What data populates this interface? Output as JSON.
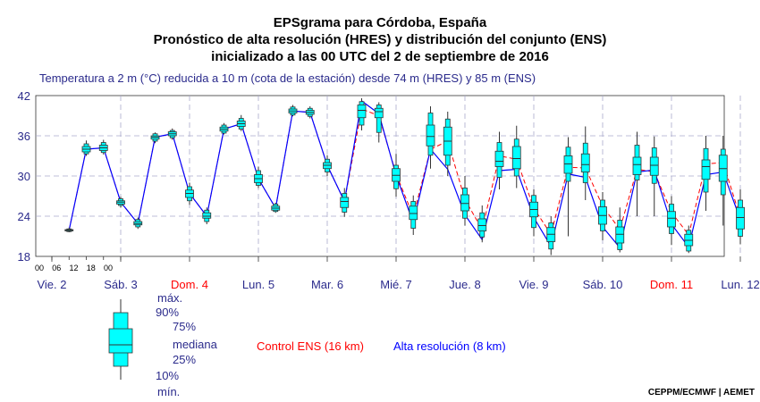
{
  "header": {
    "title_1": "EPSgrama para Córdoba, España",
    "title_2": "Pronóstico de alta resolución (HRES) y distribución del conjunto (ENS)",
    "title_3": "inicializado a las 00 UTC del 2 de septiembre de 2016",
    "subtitle": "Temperatura a 2 m (°C) reducida a 10 m (cota de la estación) desde 74 m (HRES) y 85 m (ENS)"
  },
  "credit": "CEPPM/ECMWF | AEMET",
  "legend": {
    "max": "máx.",
    "p90": "90%",
    "p75": "75%",
    "median": "mediana",
    "p25": "25%",
    "p10": "10%",
    "min": "mín.",
    "control": "Control ENS (16 km)",
    "hres": "Alta resolución (8 km)"
  },
  "colors": {
    "box": "#00ffff",
    "control": "#ff0000",
    "hres": "#0000ff",
    "label_blue": "#2b2b8c",
    "weekend": "#ff0000",
    "grid": "#aaaacc"
  },
  "chart_data": {
    "type": "box",
    "ylim": [
      18,
      42
    ],
    "yticks": [
      18,
      24,
      30,
      36,
      42
    ],
    "hour_ticks": [
      "00",
      "06",
      "12",
      "18",
      "00"
    ],
    "days": [
      {
        "label": "Vie. 2",
        "weekend": false
      },
      {
        "label": "Sáb. 3",
        "weekend": false
      },
      {
        "label": "Dom. 4",
        "weekend": true
      },
      {
        "label": "Lun. 5",
        "weekend": false
      },
      {
        "label": "Mar. 6",
        "weekend": false
      },
      {
        "label": "Mié. 7",
        "weekend": false
      },
      {
        "label": "Jue. 8",
        "weekend": false
      },
      {
        "label": "Vie. 9",
        "weekend": false
      },
      {
        "label": "Sáb. 10",
        "weekend": false
      },
      {
        "label": "Dom. 11",
        "weekend": true
      },
      {
        "label": "Lun. 12",
        "weekend": false
      }
    ],
    "steps_hours": [
      6,
      12,
      18,
      24,
      30,
      36,
      42,
      48,
      54,
      60,
      66,
      72,
      78,
      84,
      90,
      96,
      102,
      108,
      114,
      120,
      126,
      132,
      138,
      144,
      150,
      156,
      162,
      168,
      174,
      180,
      186,
      192,
      198,
      204,
      210,
      216,
      222,
      228,
      234,
      240
    ],
    "boxes": [
      {
        "min": 21.6,
        "p10": 21.7,
        "p25": 21.8,
        "median": 21.9,
        "p75": 22.0,
        "p90": 22.1,
        "max": 22.3
      },
      {
        "min": 33.0,
        "p10": 33.3,
        "p25": 33.6,
        "median": 34.0,
        "p75": 34.4,
        "p90": 34.8,
        "max": 35.3
      },
      {
        "min": 33.2,
        "p10": 33.5,
        "p25": 33.8,
        "median": 34.2,
        "p75": 34.6,
        "p90": 35.0,
        "max": 35.4
      },
      {
        "min": 25.3,
        "p10": 25.6,
        "p25": 25.8,
        "median": 26.1,
        "p75": 26.3,
        "p90": 26.6,
        "max": 26.9
      },
      {
        "min": 22.1,
        "p10": 22.4,
        "p25": 22.7,
        "median": 22.9,
        "p75": 23.2,
        "p90": 23.5,
        "max": 23.8
      },
      {
        "min": 34.9,
        "p10": 35.2,
        "p25": 35.5,
        "median": 35.8,
        "p75": 36.0,
        "p90": 36.3,
        "max": 36.5
      },
      {
        "min": 35.4,
        "p10": 35.7,
        "p25": 36.0,
        "median": 36.3,
        "p75": 36.6,
        "p90": 36.8,
        "max": 37.1
      },
      {
        "min": 25.7,
        "p10": 26.3,
        "p25": 26.8,
        "median": 27.4,
        "p75": 27.9,
        "p90": 28.4,
        "max": 29.0
      },
      {
        "min": 22.8,
        "p10": 23.2,
        "p25": 23.7,
        "median": 24.0,
        "p75": 24.5,
        "p90": 24.9,
        "max": 25.3
      },
      {
        "min": 36.2,
        "p10": 36.4,
        "p25": 36.7,
        "median": 37.0,
        "p75": 37.3,
        "p90": 37.6,
        "max": 37.9
      },
      {
        "min": 36.7,
        "p10": 37.0,
        "p25": 37.4,
        "median": 37.8,
        "p75": 38.2,
        "p90": 38.6,
        "max": 39.1
      },
      {
        "min": 28.2,
        "p10": 28.6,
        "p25": 29.0,
        "median": 29.6,
        "p75": 30.2,
        "p90": 30.8,
        "max": 31.4
      },
      {
        "min": 24.5,
        "p10": 24.7,
        "p25": 24.9,
        "median": 25.2,
        "p75": 25.5,
        "p90": 25.8,
        "max": 26.0
      },
      {
        "min": 38.9,
        "p10": 39.1,
        "p25": 39.4,
        "median": 39.7,
        "p75": 40.0,
        "p90": 40.3,
        "max": 40.6
      },
      {
        "min": 38.6,
        "p10": 38.9,
        "p25": 39.2,
        "median": 39.5,
        "p75": 39.8,
        "p90": 40.1,
        "max": 40.4
      },
      {
        "min": 30.0,
        "p10": 30.6,
        "p25": 31.1,
        "median": 31.6,
        "p75": 32.0,
        "p90": 32.5,
        "max": 33.1
      },
      {
        "min": 23.9,
        "p10": 24.6,
        "p25": 25.3,
        "median": 26.2,
        "p75": 26.8,
        "p90": 27.4,
        "max": 28.2
      },
      {
        "min": 36.8,
        "p10": 37.6,
        "p25": 38.7,
        "median": 39.8,
        "p75": 40.6,
        "p90": 41.1,
        "max": 41.6
      },
      {
        "min": 35.0,
        "p10": 36.5,
        "p25": 38.7,
        "median": 39.6,
        "p75": 40.1,
        "p90": 40.6,
        "max": 41.0
      },
      {
        "min": 26.9,
        "p10": 28.1,
        "p25": 29.2,
        "median": 30.1,
        "p75": 31.1,
        "p90": 31.6,
        "max": 33.3
      },
      {
        "min": 21.2,
        "p10": 22.2,
        "p25": 23.5,
        "median": 24.4,
        "p75": 25.5,
        "p90": 26.2,
        "max": 27.1
      },
      {
        "min": 31.1,
        "p10": 33.1,
        "p25": 34.5,
        "median": 35.9,
        "p75": 37.6,
        "p90": 39.4,
        "max": 40.4
      },
      {
        "min": 30.0,
        "p10": 31.6,
        "p25": 33.1,
        "median": 35.2,
        "p75": 37.3,
        "p90": 38.5,
        "max": 39.6
      },
      {
        "min": 22.6,
        "p10": 23.7,
        "p25": 24.8,
        "median": 25.9,
        "p75": 27.2,
        "p90": 28.2,
        "max": 30.0
      },
      {
        "min": 20.1,
        "p10": 20.9,
        "p25": 21.8,
        "median": 22.6,
        "p75": 23.6,
        "p90": 24.5,
        "max": 25.6
      },
      {
        "min": 28.0,
        "p10": 29.8,
        "p25": 31.4,
        "median": 32.2,
        "p75": 33.7,
        "p90": 35.0,
        "max": 36.6
      },
      {
        "min": 28.2,
        "p10": 30.0,
        "p25": 31.1,
        "median": 32.6,
        "p75": 34.4,
        "p90": 35.5,
        "max": 37.5
      },
      {
        "min": 21.0,
        "p10": 22.3,
        "p25": 23.9,
        "median": 25.0,
        "p75": 26.1,
        "p90": 27.1,
        "max": 28.0
      },
      {
        "min": 18.2,
        "p10": 19.1,
        "p25": 20.2,
        "median": 21.3,
        "p75": 22.3,
        "p90": 23.0,
        "max": 24.0
      },
      {
        "min": 21.0,
        "p10": 29.2,
        "p25": 30.4,
        "median": 31.8,
        "p75": 33.0,
        "p90": 34.3,
        "max": 35.8
      },
      {
        "min": 26.4,
        "p10": 29.0,
        "p25": 30.6,
        "median": 31.7,
        "p75": 33.3,
        "p90": 34.9,
        "max": 37.4
      },
      {
        "min": 20.4,
        "p10": 21.8,
        "p25": 22.8,
        "median": 24.1,
        "p75": 25.4,
        "p90": 26.4,
        "max": 27.6
      },
      {
        "min": 18.6,
        "p10": 19.0,
        "p25": 20.0,
        "median": 21.3,
        "p75": 22.4,
        "p90": 23.4,
        "max": 25.3
      },
      {
        "min": 24.0,
        "p10": 29.4,
        "p25": 30.2,
        "median": 31.7,
        "p75": 32.8,
        "p90": 34.6,
        "max": 36.6
      },
      {
        "min": 24.0,
        "p10": 28.9,
        "p25": 30.1,
        "median": 31.6,
        "p75": 32.8,
        "p90": 34.2,
        "max": 35.9
      },
      {
        "min": 19.7,
        "p10": 21.4,
        "p25": 22.4,
        "median": 23.7,
        "p75": 24.7,
        "p90": 25.8,
        "max": 27.0
      },
      {
        "min": 18.5,
        "p10": 18.8,
        "p25": 19.6,
        "median": 20.4,
        "p75": 21.3,
        "p90": 21.9,
        "max": 22.6
      },
      {
        "min": 24.8,
        "p10": 27.6,
        "p25": 29.5,
        "median": 31.4,
        "p75": 32.4,
        "p90": 34.1,
        "max": 36.0
      },
      {
        "min": 22.6,
        "p10": 27.2,
        "p25": 29.2,
        "median": 31.1,
        "p75": 33.1,
        "p90": 34.0,
        "max": 36.0
      },
      {
        "min": 19.8,
        "p10": 21.0,
        "p25": 22.1,
        "median": 23.8,
        "p75": 25.3,
        "p90": 26.4,
        "max": 28.0
      }
    ],
    "control": [
      21.9,
      34.0,
      34.2,
      26.1,
      22.9,
      35.8,
      36.3,
      27.4,
      24.0,
      37.0,
      37.8,
      29.6,
      25.2,
      39.7,
      39.5,
      31.6,
      26.2,
      40.0,
      39.0,
      30.3,
      24.0,
      34.0,
      35.2,
      26.5,
      22.0,
      33.0,
      32.5,
      25.2,
      21.3,
      31.3,
      31.2,
      25.5,
      22.0,
      31.0,
      30.6,
      24.6,
      21.2,
      31.8,
      32.0,
      23.8
    ],
    "hres": [
      21.9,
      34.0,
      34.2,
      26.1,
      22.9,
      35.8,
      36.3,
      27.4,
      24.0,
      37.0,
      37.8,
      29.6,
      25.2,
      39.7,
      39.5,
      31.6,
      26.2,
      41.2,
      39.3,
      30.1,
      23.0,
      34.0,
      31.0,
      24.2,
      20.5,
      30.8,
      31.0,
      23.8,
      19.5,
      30.3,
      29.8,
      22.4,
      19.3,
      30.6,
      30.9,
      22.8,
      19.4,
      30.2,
      30.6,
      23.5
    ]
  }
}
